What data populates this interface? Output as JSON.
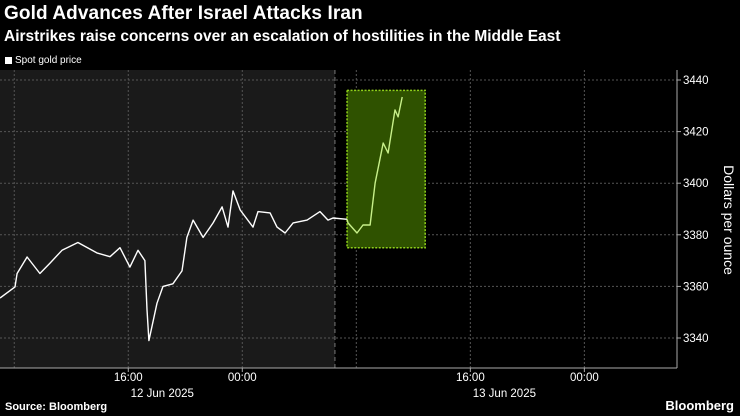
{
  "title": "Gold Advances After Israel Attacks Iran",
  "subtitle": "Airstrikes raise concerns over an escalation of hostilities in the Middle East",
  "source": "Source: Bloomberg",
  "logo": "Bloomberg",
  "colors": {
    "background": "#000000",
    "shaded_period": "#1a1a1a",
    "line": "#ffffff",
    "highlight_fill": "#2f5200",
    "highlight_border": "#8fd11a",
    "highlight_line": "#c8f08a"
  },
  "chart_data": {
    "type": "line",
    "title": "Gold Advances After Israel Attacks Iran",
    "ylabel": "Dollars per ounce",
    "ylim": [
      3330,
      3445
    ],
    "xlim": [
      "2025-06-12 07:00",
      "2025-06-14 06:30"
    ],
    "grid": true,
    "legend": "top-left",
    "y_ticks": [
      3340,
      3360,
      3380,
      3400,
      3420,
      3440
    ],
    "x_ticks": [
      {
        "time": "2025-06-12 16:00",
        "label": "16:00",
        "sublabel": ""
      },
      {
        "time": "2025-06-13 00:00",
        "label": "00:00",
        "sublabel": "12 Jun 2025"
      },
      {
        "time": "2025-06-13 16:00",
        "label": "16:00",
        "sublabel": ""
      },
      {
        "time": "2025-06-14 00:00",
        "label": "00:00",
        "sublabel": "13 Jun 2025"
      }
    ],
    "shaded_period": [
      "2025-06-12 07:00",
      "2025-06-13 06:30"
    ],
    "highlight_box": {
      "x": [
        "2025-06-13 07:21",
        "2025-06-13 12:50"
      ],
      "y": [
        3375,
        3436
      ]
    },
    "series": [
      {
        "name": "Spot gold price",
        "points": [
          [
            "2025-06-12 07:00",
            3355.5
          ],
          [
            "2025-06-12 08:03",
            3359.8
          ],
          [
            "2025-06-12 08:12",
            3365
          ],
          [
            "2025-06-12 08:54",
            3371.4
          ],
          [
            "2025-06-12 09:48",
            3365
          ],
          [
            "2025-06-12 10:30",
            3369
          ],
          [
            "2025-06-12 11:21",
            3374
          ],
          [
            "2025-06-12 12:28",
            3377
          ],
          [
            "2025-06-12 13:48",
            3373
          ],
          [
            "2025-06-12 14:43",
            3371.5
          ],
          [
            "2025-06-12 15:25",
            3375
          ],
          [
            "2025-06-12 16:07",
            3367.5
          ],
          [
            "2025-06-12 16:41",
            3374
          ],
          [
            "2025-06-12 17:10",
            3370
          ],
          [
            "2025-06-12 17:19",
            3351
          ],
          [
            "2025-06-12 17:27",
            3339
          ],
          [
            "2025-06-12 18:01",
            3353.5
          ],
          [
            "2025-06-12 18:26",
            3360
          ],
          [
            "2025-06-12 19:08",
            3361
          ],
          [
            "2025-06-12 19:46",
            3366
          ],
          [
            "2025-06-12 20:07",
            3379
          ],
          [
            "2025-06-12 20:33",
            3385.7
          ],
          [
            "2025-06-12 21:15",
            3379
          ],
          [
            "2025-06-12 21:57",
            3384.6
          ],
          [
            "2025-06-12 22:35",
            3390.8
          ],
          [
            "2025-06-12 23:00",
            3383
          ],
          [
            "2025-06-12 23:21",
            3397
          ],
          [
            "2025-06-12 23:51",
            3389.6
          ],
          [
            "2025-06-13 00:45",
            3383
          ],
          [
            "2025-06-13 01:06",
            3389
          ],
          [
            "2025-06-13 01:57",
            3388.5
          ],
          [
            "2025-06-13 02:26",
            3383
          ],
          [
            "2025-06-13 03:00",
            3380.7
          ],
          [
            "2025-06-13 03:34",
            3384.6
          ],
          [
            "2025-06-13 04:33",
            3385.7
          ],
          [
            "2025-06-13 05:27",
            3389
          ],
          [
            "2025-06-13 06:01",
            3385.7
          ],
          [
            "2025-06-13 06:22",
            3386.5
          ],
          [
            "2025-06-13 07:21",
            3386
          ]
        ]
      },
      {
        "segment": "highlighted",
        "points": [
          [
            "2025-06-13 07:21",
            3386
          ],
          [
            "2025-06-13 07:25",
            3384.6
          ],
          [
            "2025-06-13 08:03",
            3380.7
          ],
          [
            "2025-06-13 08:28",
            3383.8
          ],
          [
            "2025-06-13 08:58",
            3383.8
          ],
          [
            "2025-06-13 09:19",
            3400
          ],
          [
            "2025-06-13 09:53",
            3415.6
          ],
          [
            "2025-06-13 10:14",
            3411.7
          ],
          [
            "2025-06-13 10:43",
            3428.4
          ],
          [
            "2025-06-13 10:56",
            3425.7
          ],
          [
            "2025-06-13 11:13",
            3433.4
          ]
        ]
      }
    ]
  }
}
